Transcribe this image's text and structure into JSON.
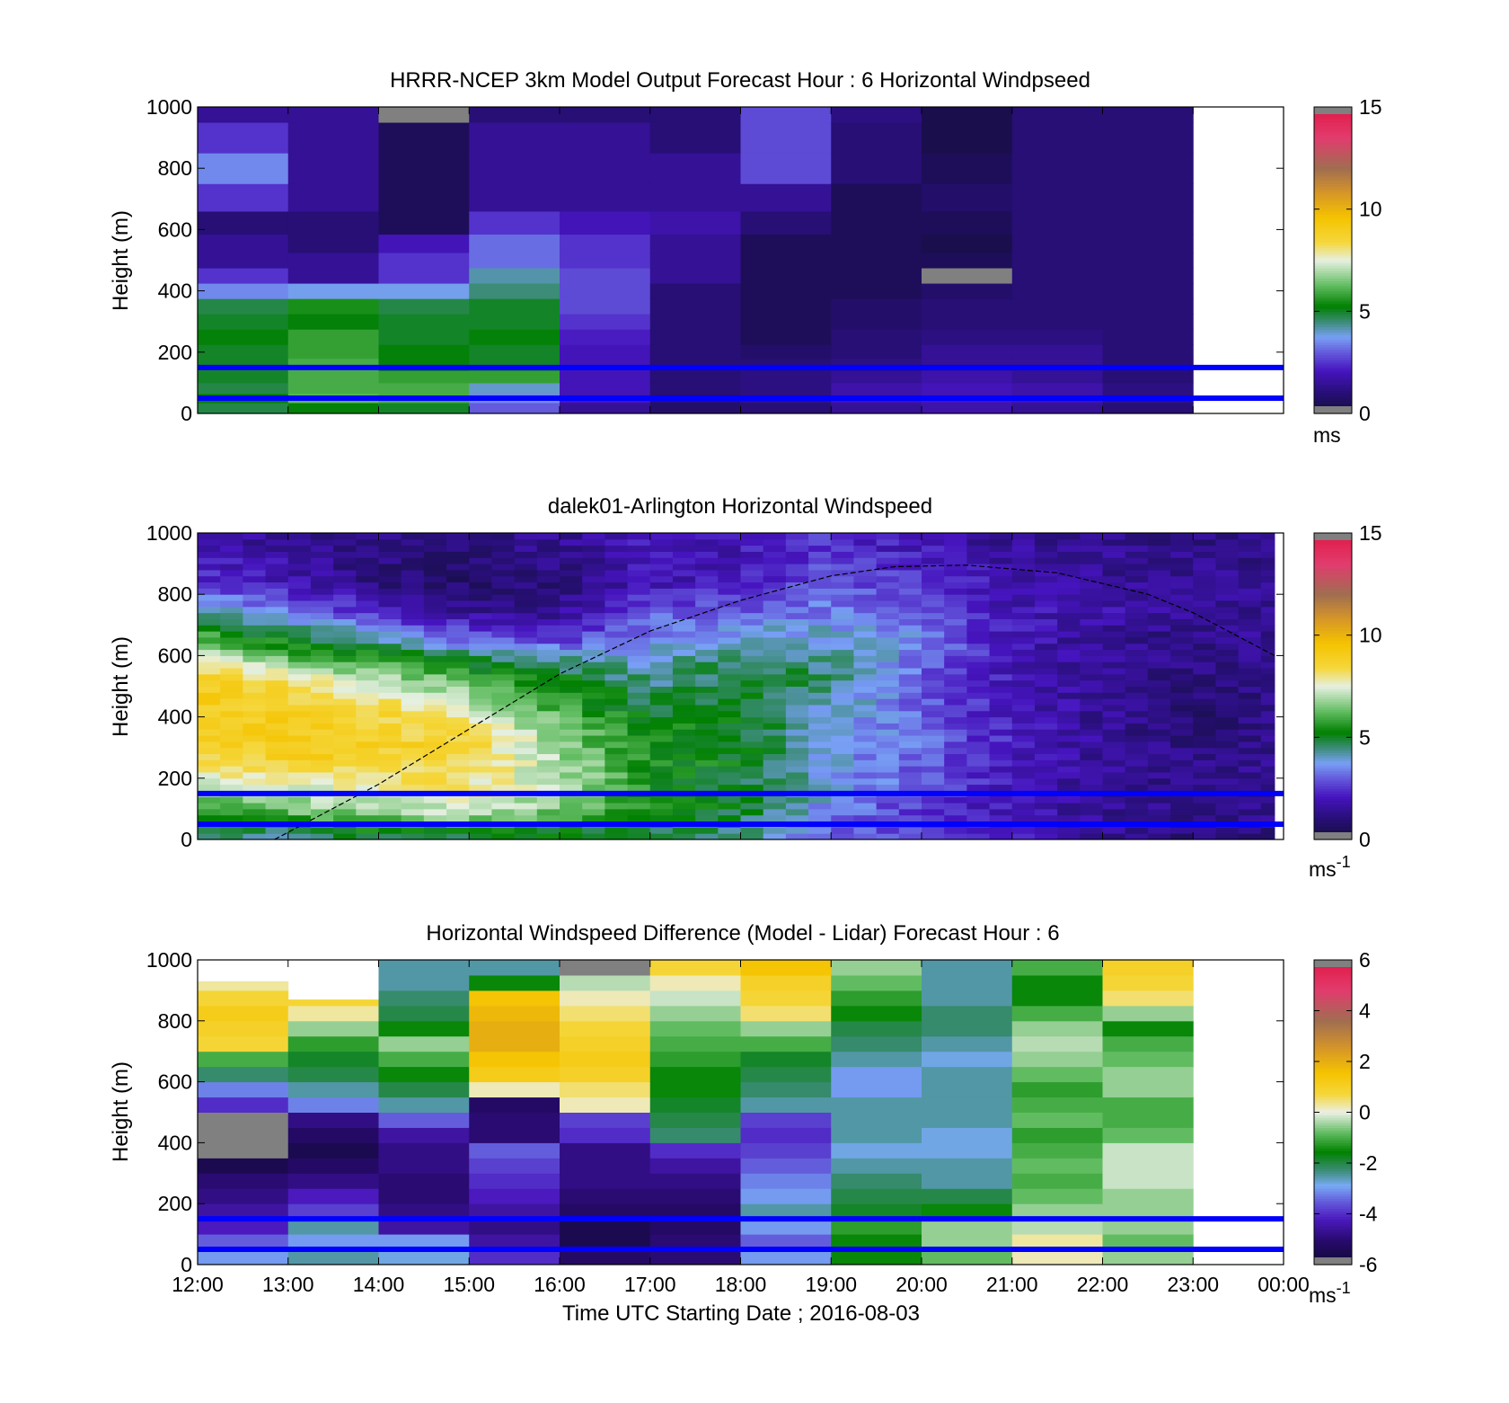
{
  "figure": {
    "xlabel": "Time UTC  Starting Date ; 2016-08-03",
    "x_ticklabels": [
      "12:00",
      "13:00",
      "14:00",
      "15:00",
      "16:00",
      "17:00",
      "18:00",
      "19:00",
      "20:00",
      "21:00",
      "22:00",
      "23:00",
      "00:00"
    ]
  },
  "chart_data": [
    {
      "type": "heatmap",
      "title": "HRRR-NCEP 3km Model Output   Forecast Hour : 6 Horizontal Windpseed",
      "ylabel": "Height (m)",
      "ylim": [
        0,
        1000
      ],
      "y_ticklabels": [
        "0",
        "200",
        "400",
        "600",
        "800",
        "1000"
      ],
      "xlim": [
        12,
        24
      ],
      "colorbar": {
        "unit_base": "ms",
        "unit_sup": "",
        "ticks": [
          0,
          5,
          10,
          15
        ],
        "ticklabels": [
          "0",
          "5",
          "10",
          "15"
        ],
        "range": [
          0,
          15
        ]
      },
      "horizontal_lines_m": [
        150,
        50
      ],
      "horizontal_line_color": "#0000ff",
      "data_end_hour": 23,
      "height_levels_m": [
        20,
        50,
        80,
        120,
        160,
        200,
        250,
        300,
        350,
        400,
        450,
        500,
        550,
        620,
        700,
        800,
        900,
        1000
      ],
      "columns": [
        {
          "hour": 12,
          "speeds_ms": [
            4.8,
            5.2,
            4.8,
            5.0,
            5.0,
            5.0,
            5.2,
            5.0,
            4.8,
            3.5,
            2.5,
            1.5,
            1.5,
            1.0,
            2.5,
            3.5,
            2.5,
            1.5
          ]
        },
        {
          "hour": 13,
          "speeds_ms": [
            5.2,
            6.2,
            6.0,
            6.0,
            6.0,
            5.8,
            5.8,
            5.2,
            5.5,
            3.8,
            1.5,
            1.5,
            1.0,
            1.0,
            1.5,
            1.5,
            1.5,
            1.5
          ]
        },
        {
          "hour": 14,
          "speeds_ms": [
            5.0,
            6.0,
            6.0,
            5.8,
            5.2,
            5.2,
            5.0,
            5.0,
            4.8,
            3.8,
            2.5,
            2.5,
            2.0,
            0.5,
            0.5,
            0.5,
            0.5,
            null
          ]
        },
        {
          "hour": 15,
          "speeds_ms": [
            3.0,
            3.5,
            4.0,
            5.8,
            5.0,
            5.0,
            5.2,
            5.0,
            5.0,
            4.5,
            4.2,
            3.2,
            3.2,
            2.5,
            1.5,
            1.5,
            1.5,
            1.0
          ]
        },
        {
          "hour": 16,
          "speeds_ms": [
            1.5,
            2.0,
            2.0,
            2.0,
            2.0,
            2.0,
            2.2,
            2.5,
            2.8,
            2.8,
            2.8,
            2.5,
            2.5,
            2.0,
            1.5,
            1.5,
            1.5,
            1.0
          ]
        },
        {
          "hour": 17,
          "speeds_ms": [
            0.8,
            1.0,
            1.0,
            1.0,
            1.0,
            1.0,
            1.0,
            1.0,
            1.0,
            1.0,
            1.5,
            1.5,
            1.5,
            1.8,
            1.5,
            1.5,
            1.0,
            1.0
          ]
        },
        {
          "hour": 18,
          "speeds_ms": [
            1.0,
            1.2,
            1.2,
            1.2,
            1.0,
            0.8,
            0.5,
            0.5,
            0.5,
            0.5,
            0.5,
            0.5,
            0.5,
            1.0,
            1.5,
            2.8,
            2.8,
            2.8
          ]
        },
        {
          "hour": 19,
          "speeds_ms": [
            1.5,
            1.8,
            1.8,
            1.5,
            1.2,
            1.0,
            1.0,
            0.8,
            0.8,
            0.5,
            0.5,
            0.5,
            0.5,
            0.5,
            0.5,
            1.0,
            1.0,
            1.2
          ]
        },
        {
          "hour": 20,
          "speeds_ms": [
            1.8,
            2.0,
            2.0,
            1.8,
            1.5,
            1.5,
            1.2,
            1.0,
            1.0,
            0.8,
            null,
            0.5,
            0.3,
            0.5,
            0.8,
            0.5,
            0.3,
            0.3
          ]
        },
        {
          "hour": 21,
          "speeds_ms": [
            1.5,
            1.8,
            1.8,
            1.5,
            1.5,
            1.5,
            1.2,
            1.0,
            1.0,
            1.0,
            1.0,
            1.0,
            1.0,
            1.0,
            1.0,
            1.0,
            1.0,
            1.0
          ]
        },
        {
          "hour": 22,
          "speeds_ms": [
            1.0,
            1.2,
            1.2,
            1.0,
            1.0,
            1.0,
            1.0,
            1.0,
            1.0,
            1.0,
            1.0,
            1.0,
            1.0,
            1.0,
            1.0,
            1.0,
            1.0,
            1.0
          ]
        }
      ]
    },
    {
      "type": "heatmap",
      "title": "dalek01-Arlington  Horizontal Windspeed",
      "ylabel": "Height (m)",
      "ylim": [
        0,
        1000
      ],
      "y_ticklabels": [
        "0",
        "200",
        "400",
        "600",
        "800",
        "1000"
      ],
      "xlim": [
        12,
        24
      ],
      "colorbar": {
        "unit_base": "ms",
        "unit_sup": "-1",
        "ticks": [
          0,
          5,
          10,
          15
        ],
        "ticklabels": [
          "0",
          "5",
          "10",
          "15"
        ],
        "range": [
          0,
          15
        ]
      },
      "horizontal_lines_m": [
        150,
        50
      ],
      "horizontal_line_color": "#0000ff",
      "data_end_hour": 23.9,
      "boundary_layer_curve": {
        "x_hours": [
          12.85,
          14,
          15,
          16,
          17,
          18,
          19,
          19.7,
          20.5,
          21.5,
          22.5,
          23,
          23.9
        ],
        "y_m": [
          0,
          180,
          360,
          540,
          680,
          780,
          860,
          890,
          895,
          870,
          800,
          740,
          600
        ]
      },
      "profiles": [
        {
          "hour": 12.0,
          "speeds_ms": [
            4.5,
            6.0,
            7.0,
            8.5,
            9.0,
            9.0,
            9.0,
            8.0,
            6.0,
            4.5,
            2.5,
            1.8
          ]
        },
        {
          "hour": 13.0,
          "speeds_ms": [
            4.5,
            6.5,
            7.5,
            8.8,
            9.0,
            8.8,
            8.5,
            6.5,
            5.0,
            3.5,
            2.0,
            1.5
          ]
        },
        {
          "hour": 14.0,
          "speeds_ms": [
            5.0,
            7.0,
            8.0,
            8.8,
            8.8,
            8.5,
            7.5,
            6.0,
            4.0,
            2.5,
            1.0,
            1.2
          ]
        },
        {
          "hour": 15.0,
          "speeds_ms": [
            5.0,
            7.5,
            8.0,
            8.5,
            8.5,
            7.5,
            6.5,
            5.0,
            3.0,
            1.5,
            0.8,
            1.0
          ]
        },
        {
          "hour": 16.0,
          "speeds_ms": [
            5.0,
            6.5,
            7.0,
            7.0,
            6.5,
            6.0,
            5.5,
            4.5,
            2.5,
            1.5,
            1.0,
            1.5
          ]
        },
        {
          "hour": 17.0,
          "speeds_ms": [
            4.5,
            5.5,
            5.5,
            5.5,
            5.5,
            5.0,
            4.5,
            4.0,
            3.5,
            3.0,
            2.0,
            2.0
          ]
        },
        {
          "hour": 18.0,
          "speeds_ms": [
            4.5,
            5.0,
            5.0,
            5.2,
            5.2,
            5.0,
            5.0,
            4.8,
            4.0,
            3.0,
            2.0,
            2.0
          ]
        },
        {
          "hour": 19.0,
          "speeds_ms": [
            3.0,
            3.5,
            3.8,
            3.8,
            3.8,
            4.0,
            4.5,
            4.5,
            4.0,
            3.5,
            3.0,
            2.5
          ]
        },
        {
          "hour": 20.0,
          "speeds_ms": [
            2.5,
            2.5,
            3.0,
            3.0,
            3.2,
            3.2,
            3.0,
            3.2,
            3.5,
            3.2,
            2.5,
            2.0
          ]
        },
        {
          "hour": 21.0,
          "speeds_ms": [
            2.0,
            2.0,
            2.0,
            2.2,
            2.2,
            2.0,
            2.0,
            2.0,
            2.0,
            2.0,
            1.8,
            1.5
          ]
        },
        {
          "hour": 22.0,
          "speeds_ms": [
            1.5,
            1.5,
            1.5,
            1.5,
            1.5,
            1.5,
            1.5,
            1.5,
            1.5,
            1.8,
            1.5,
            1.5
          ]
        },
        {
          "hour": 23.0,
          "speeds_ms": [
            1.0,
            1.2,
            1.2,
            1.2,
            1.0,
            1.0,
            1.0,
            1.2,
            1.2,
            1.5,
            1.5,
            1.2
          ]
        },
        {
          "hour": 23.9,
          "speeds_ms": [
            1.2,
            1.5,
            1.5,
            1.5,
            1.2,
            1.2,
            1.2,
            1.5,
            1.5,
            1.5,
            1.5,
            1.2
          ]
        }
      ],
      "profile_heights_m": [
        20,
        100,
        180,
        260,
        340,
        420,
        500,
        580,
        660,
        740,
        840,
        960
      ]
    },
    {
      "type": "heatmap",
      "title": "Horizontal Windspeed Difference (Model - Lidar) Forecast Hour : 6",
      "ylabel": "Height (m)",
      "xlabel": "Time UTC  Starting Date ; 2016-08-03",
      "ylim": [
        0,
        1000
      ],
      "y_ticklabels": [
        "0",
        "200",
        "400",
        "600",
        "800",
        "1000"
      ],
      "xlim": [
        12,
        24
      ],
      "colorbar": {
        "unit_base": "ms",
        "unit_sup": "-1",
        "ticks": [
          -6,
          -4,
          -2,
          0,
          2,
          4,
          6
        ],
        "ticklabels": [
          "-6",
          "-4",
          "-2",
          "0",
          "2",
          "4",
          "6"
        ],
        "range": [
          -6,
          6
        ]
      },
      "horizontal_lines_m": [
        150,
        50
      ],
      "horizontal_line_color": "#0000ff",
      "data_end_hour": 23,
      "height_levels_m": [
        25,
        75,
        125,
        175,
        225,
        275,
        325,
        375,
        425,
        475,
        525,
        575,
        625,
        675,
        725,
        775,
        825,
        875,
        925,
        975
      ],
      "columns": [
        {
          "hour": 12,
          "top_m": 930,
          "diffs": [
            -3.0,
            -3.5,
            -4.2,
            -4.5,
            -4.8,
            -5.0,
            -5.5,
            null,
            null,
            null,
            -4.0,
            -3.2,
            -2.2,
            -1.0,
            0.8,
            1.0,
            1.2,
            0.8,
            0.3,
            null
          ]
        },
        {
          "hour": 13,
          "top_m": 870,
          "diffs": [
            -2.5,
            -3.0,
            -2.5,
            -3.8,
            -4.2,
            -4.8,
            -5.2,
            -5.5,
            -5.2,
            -4.8,
            -3.2,
            -2.5,
            -2.0,
            -1.8,
            -1.2,
            -0.5,
            0.3,
            0.8,
            null,
            null
          ]
        },
        {
          "hour": 14,
          "top_m": 1000,
          "diffs": [
            -2.8,
            -3.0,
            -4.5,
            -4.8,
            -5.0,
            -5.0,
            -4.8,
            -4.8,
            -4.5,
            -3.5,
            -2.5,
            -2.0,
            -1.5,
            -1.0,
            -0.5,
            -1.5,
            -2.0,
            -2.2,
            -2.5,
            -2.5
          ]
        },
        {
          "hour": 15,
          "top_m": 1000,
          "diffs": [
            -4.0,
            -4.5,
            -4.8,
            -4.5,
            -4.2,
            -4.0,
            -3.8,
            -3.5,
            -5.0,
            -5.0,
            -5.2,
            0.2,
            1.2,
            1.5,
            2.0,
            2.0,
            1.8,
            1.5,
            -1.5,
            -2.5
          ]
        },
        {
          "hour": 16,
          "top_m": 1000,
          "diffs": [
            -5.2,
            -5.5,
            -5.5,
            -5.2,
            -5.0,
            -4.8,
            -4.8,
            -4.8,
            -4.0,
            -3.8,
            0.2,
            0.5,
            1.0,
            1.2,
            1.0,
            0.8,
            0.5,
            0.2,
            -0.3,
            null
          ]
        },
        {
          "hour": 17,
          "top_m": 1000,
          "diffs": [
            -5.0,
            -5.0,
            -5.2,
            -5.2,
            -5.0,
            -4.8,
            -4.5,
            -4.0,
            -2.2,
            -2.0,
            -1.8,
            -1.5,
            -1.5,
            -1.2,
            -1.0,
            -0.8,
            -0.5,
            -0.2,
            0.2,
            0.8
          ]
        },
        {
          "hour": 18,
          "top_m": 1000,
          "diffs": [
            -3.0,
            -3.5,
            -3.0,
            -2.5,
            -3.0,
            -3.2,
            -3.5,
            -3.8,
            -4.0,
            -3.8,
            -2.5,
            -2.2,
            -2.0,
            -1.8,
            -1.0,
            -0.5,
            0.5,
            0.8,
            1.0,
            1.5
          ]
        },
        {
          "hour": 19,
          "top_m": 1000,
          "diffs": [
            -1.5,
            -1.5,
            -1.2,
            -1.8,
            -2.0,
            -2.2,
            -2.5,
            -2.8,
            -2.5,
            -2.5,
            -2.5,
            -3.0,
            -3.0,
            -2.5,
            -2.2,
            -2.0,
            -1.5,
            -1.2,
            -0.8,
            -0.5
          ]
        },
        {
          "hour": 20,
          "top_m": 1000,
          "diffs": [
            -0.8,
            -0.5,
            -0.5,
            -1.5,
            -2.0,
            -2.5,
            -2.5,
            -2.8,
            -2.8,
            -2.5,
            -2.5,
            -2.5,
            -2.5,
            -2.8,
            -2.5,
            -2.2,
            -2.2,
            -2.5,
            -2.5,
            -2.5
          ]
        },
        {
          "hour": 21,
          "top_m": 1000,
          "diffs": [
            0.2,
            0.3,
            -0.3,
            -0.5,
            -0.8,
            -1.0,
            -0.8,
            -1.0,
            -1.2,
            -0.8,
            -1.0,
            -1.2,
            -0.8,
            -0.5,
            -0.3,
            -0.5,
            -1.0,
            -1.5,
            -1.5,
            -1.0
          ]
        },
        {
          "hour": 22,
          "top_m": 1000,
          "diffs": [
            -0.5,
            -0.8,
            -0.5,
            -0.5,
            -0.5,
            -0.2,
            -0.2,
            -0.2,
            -0.8,
            -1.0,
            -1.0,
            -0.5,
            -0.5,
            -0.8,
            -1.0,
            -1.5,
            -0.5,
            0.5,
            0.8,
            1.0
          ]
        }
      ]
    }
  ]
}
